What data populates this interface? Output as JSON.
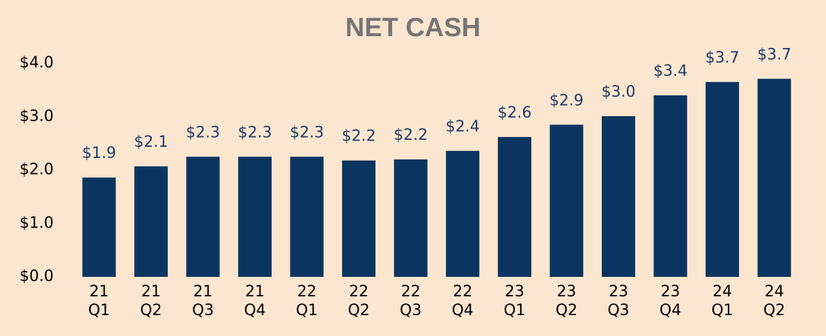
{
  "chart_data": {
    "type": "bar",
    "title": "NET CASH",
    "categories": [
      [
        "21",
        "Q1"
      ],
      [
        "21",
        "Q2"
      ],
      [
        "21",
        "Q3"
      ],
      [
        "21",
        "Q4"
      ],
      [
        "22",
        "Q1"
      ],
      [
        "22",
        "Q2"
      ],
      [
        "22",
        "Q3"
      ],
      [
        "22",
        "Q4"
      ],
      [
        "23",
        "Q1"
      ],
      [
        "23",
        "Q2"
      ],
      [
        "23",
        "Q3"
      ],
      [
        "23",
        "Q4"
      ],
      [
        "24",
        "Q1"
      ],
      [
        "24",
        "Q2"
      ]
    ],
    "values": [
      1.86,
      2.07,
      2.25,
      2.25,
      2.25,
      2.18,
      2.2,
      2.36,
      2.62,
      2.85,
      3.01,
      3.4,
      3.65,
      3.71
    ],
    "value_labels": [
      "$1.9",
      "$2.1",
      "$2.3",
      "$2.3",
      "$2.3",
      "$2.2",
      "$2.2",
      "$2.4",
      "$2.6",
      "$2.9",
      "$3.0",
      "$3.4",
      "$3.7",
      "$3.7"
    ],
    "color": "#0b3560",
    "ylim": [
      0,
      4
    ],
    "yticks": [
      {
        "value": 0,
        "label": "$0.0"
      },
      {
        "value": 1,
        "label": "$1.0"
      },
      {
        "value": 2,
        "label": "$2.0"
      },
      {
        "value": 3,
        "label": "$3.0"
      },
      {
        "value": 4,
        "label": "$4.0"
      }
    ],
    "grid": false
  }
}
